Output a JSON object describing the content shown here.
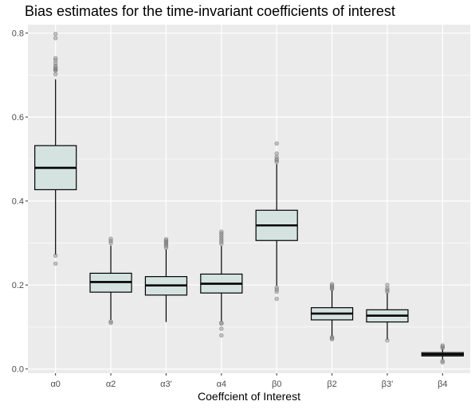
{
  "chart_data": {
    "type": "boxplot",
    "title": "Bias estimates for the time-invariant coefficients of interest",
    "xlabel": "Coeffcient of Interest",
    "ylabel": "",
    "ylim": [
      -0.01,
      0.82
    ],
    "yticks": [
      0.0,
      0.2,
      0.4,
      0.6,
      0.8
    ],
    "ytick_labels": [
      "0.0",
      "0.2",
      "0.4",
      "0.6",
      "0.8"
    ],
    "grid": true,
    "colors": {
      "panel": "#ebebeb",
      "grid": "#ffffff",
      "box_fill": "#d4e3e0",
      "outline": "#000000",
      "outlier": "#8c8c8c"
    },
    "categories": [
      "α0",
      "α2",
      "α3'",
      "α4",
      "β0",
      "β2",
      "β3'",
      "β4"
    ],
    "boxes": [
      {
        "category": "α0",
        "q1": 0.427,
        "median": 0.479,
        "q3": 0.532,
        "whisker_low": 0.272,
        "whisker_high": 0.69,
        "outliers": [
          0.27,
          0.251,
          0.702,
          0.711,
          0.712,
          0.715,
          0.718,
          0.722,
          0.728,
          0.735,
          0.74,
          0.788,
          0.798
        ]
      },
      {
        "category": "α2",
        "q1": 0.183,
        "median": 0.207,
        "q3": 0.228,
        "whisker_low": 0.117,
        "whisker_high": 0.294,
        "outliers": [
          0.113,
          0.11,
          0.3,
          0.305,
          0.31
        ]
      },
      {
        "category": "α3'",
        "q1": 0.176,
        "median": 0.199,
        "q3": 0.22,
        "whisker_low": 0.112,
        "whisker_high": 0.285,
        "outliers": [
          0.289,
          0.293,
          0.297,
          0.3,
          0.303,
          0.306,
          0.309
        ]
      },
      {
        "category": "α4",
        "q1": 0.181,
        "median": 0.203,
        "q3": 0.226,
        "whisker_low": 0.114,
        "whisker_high": 0.293,
        "outliers": [
          0.11,
          0.108,
          0.096,
          0.08,
          0.298,
          0.303,
          0.308,
          0.313,
          0.318,
          0.323,
          0.327
        ]
      },
      {
        "category": "β0",
        "q1": 0.306,
        "median": 0.342,
        "q3": 0.378,
        "whisker_low": 0.198,
        "whisker_high": 0.488,
        "outliers": [
          0.194,
          0.189,
          0.184,
          0.167,
          0.493,
          0.497,
          0.5,
          0.505,
          0.513,
          0.537
        ]
      },
      {
        "category": "β2",
        "q1": 0.117,
        "median": 0.132,
        "q3": 0.146,
        "whisker_low": 0.078,
        "whisker_high": 0.188,
        "outliers": [
          0.076,
          0.073,
          0.071,
          0.19,
          0.193,
          0.196,
          0.199,
          0.202
        ]
      },
      {
        "category": "β3'",
        "q1": 0.112,
        "median": 0.127,
        "q3": 0.141,
        "whisker_low": 0.07,
        "whisker_high": 0.181,
        "outliers": [
          0.068,
          0.184,
          0.188,
          0.192,
          0.2
        ]
      },
      {
        "category": "β4",
        "q1": 0.031,
        "median": 0.035,
        "q3": 0.039,
        "whisker_low": 0.022,
        "whisker_high": 0.048,
        "outliers": [
          0.019,
          0.016,
          0.05,
          0.053,
          0.056
        ]
      }
    ]
  }
}
